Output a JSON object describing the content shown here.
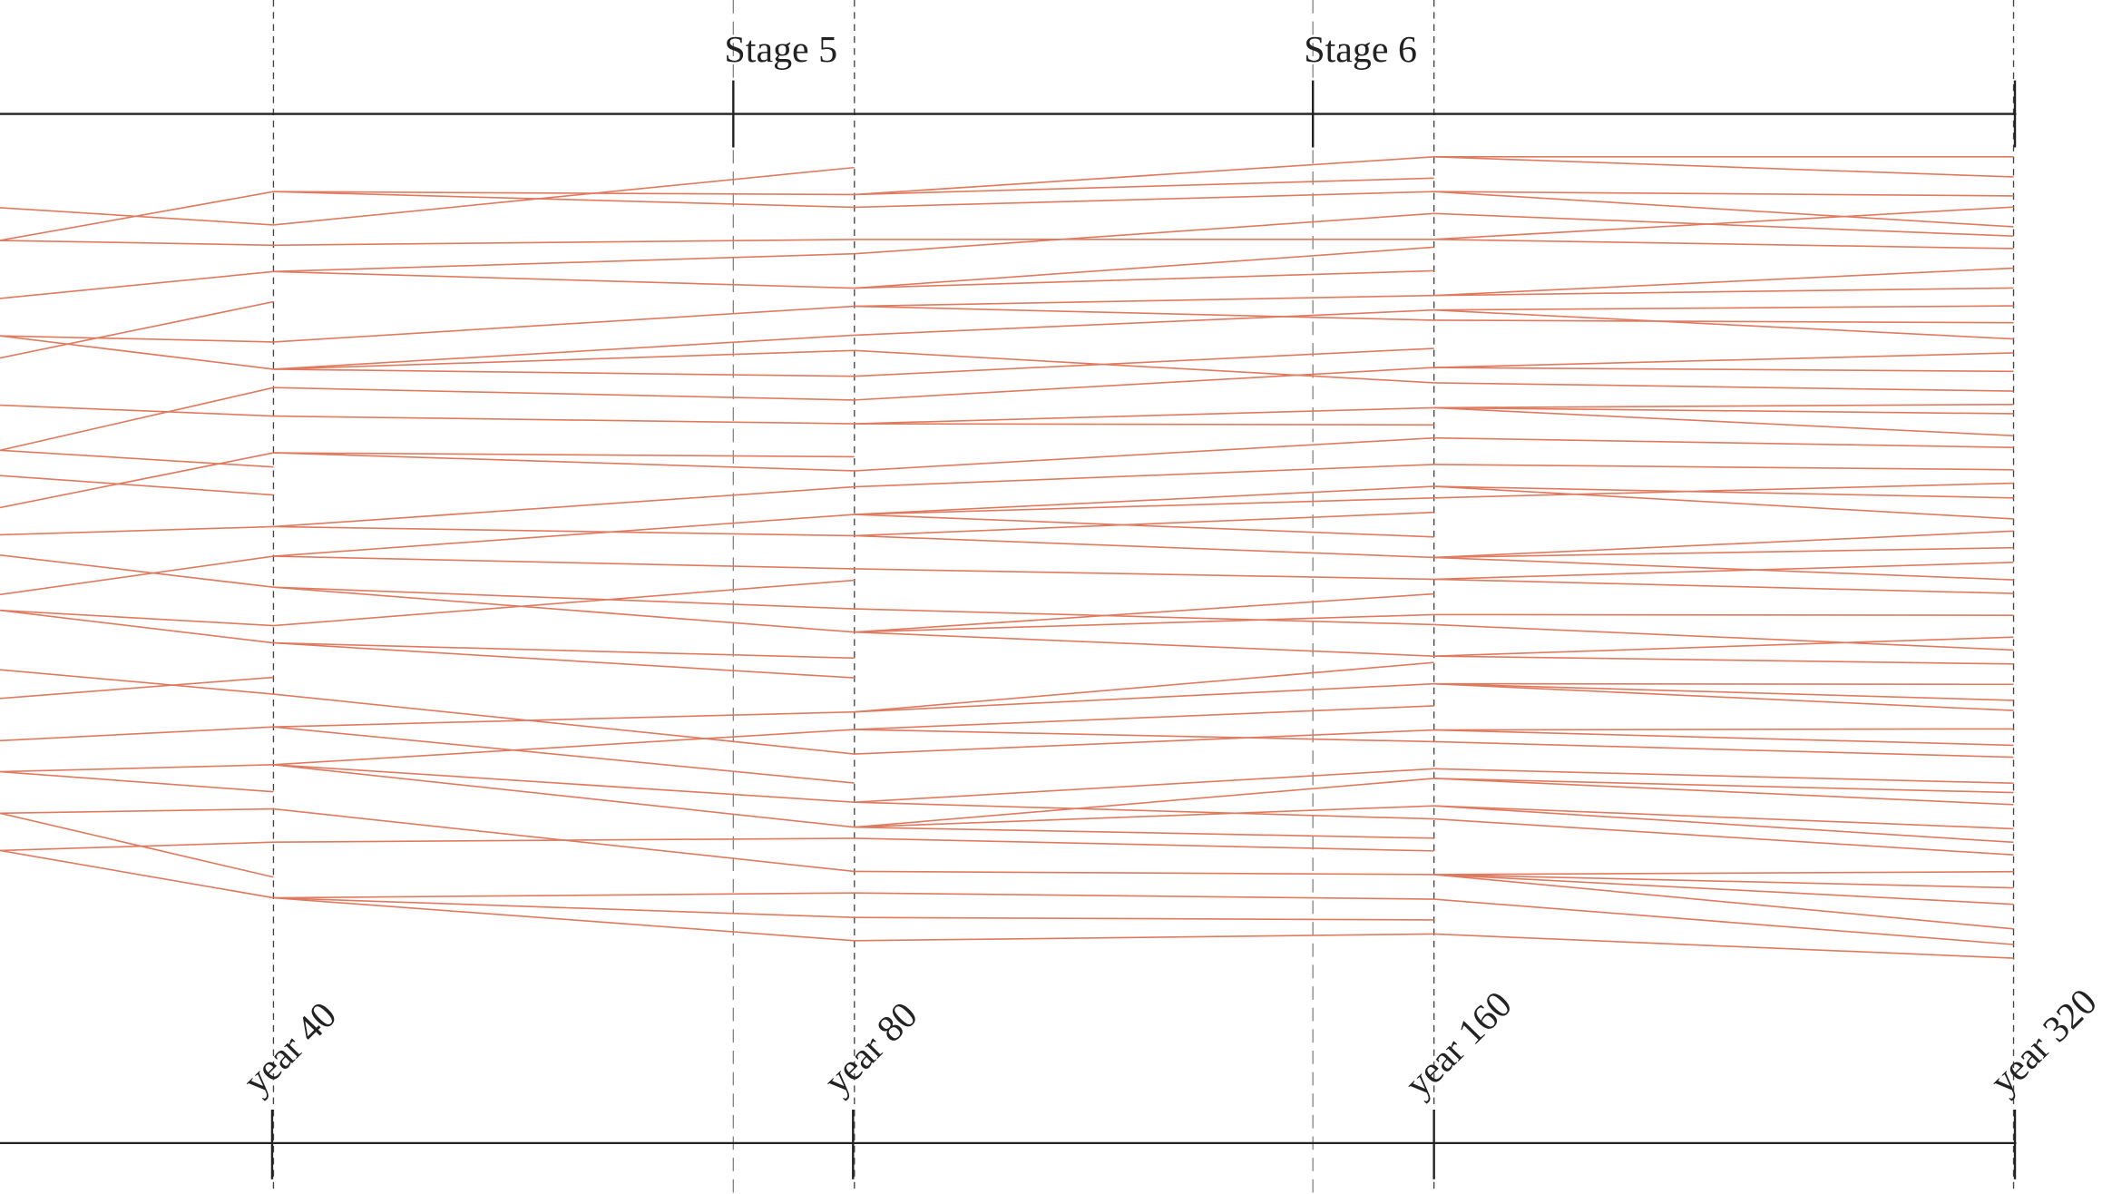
{
  "stage_labels": [
    "Stage 5",
    "Stage 6"
  ],
  "year_labels": [
    "year 40",
    "year 80",
    "year 160",
    "year 320"
  ]
}
